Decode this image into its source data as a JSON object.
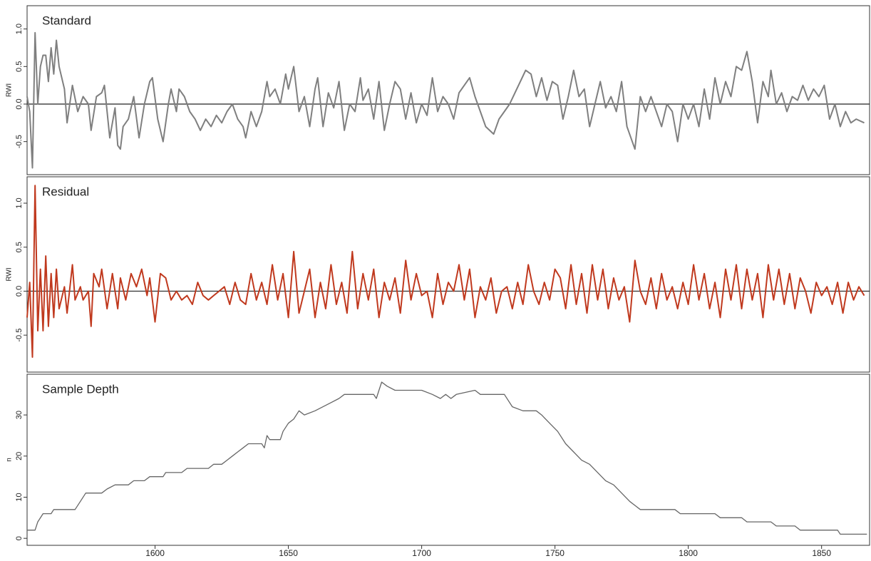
{
  "chart_data": [
    {
      "type": "line",
      "title": "Standard",
      "ylabel": "RWI",
      "color": "#7f7f7f",
      "hline": 0,
      "xlim": [
        1552,
        1868
      ],
      "ylim": [
        -0.94,
        1.31
      ],
      "yticks": [
        -0.5,
        {
          "value": 0,
          "label": "0.0"
        },
        0.5,
        {
          "value": 1,
          "label": "1.0"
        }
      ],
      "x": [
        1552,
        1553,
        1554,
        1555,
        1556,
        1557,
        1558,
        1559,
        1560,
        1561,
        1562,
        1563,
        1564,
        1566,
        1567,
        1569,
        1571,
        1573,
        1575,
        1576,
        1578,
        1580,
        1581,
        1583,
        1585,
        1586,
        1587,
        1588,
        1590,
        1592,
        1594,
        1596,
        1598,
        1599,
        1601,
        1603,
        1605,
        1606,
        1608,
        1609,
        1611,
        1613,
        1615,
        1617,
        1619,
        1621,
        1623,
        1625,
        1627,
        1629,
        1631,
        1633,
        1634,
        1636,
        1638,
        1640,
        1642,
        1643,
        1645,
        1647,
        1649,
        1650,
        1652,
        1654,
        1656,
        1658,
        1660,
        1661,
        1663,
        1665,
        1667,
        1669,
        1671,
        1673,
        1675,
        1677,
        1678,
        1680,
        1682,
        1684,
        1686,
        1688,
        1690,
        1692,
        1694,
        1696,
        1698,
        1700,
        1702,
        1704,
        1706,
        1708,
        1710,
        1712,
        1714,
        1716,
        1718,
        1720,
        1722,
        1724,
        1727,
        1729,
        1731,
        1733,
        1735,
        1737,
        1739,
        1741,
        1743,
        1745,
        1747,
        1749,
        1751,
        1753,
        1755,
        1757,
        1759,
        1761,
        1763,
        1765,
        1767,
        1769,
        1771,
        1773,
        1775,
        1777,
        1780,
        1782,
        1784,
        1786,
        1788,
        1790,
        1792,
        1794,
        1796,
        1798,
        1800,
        1802,
        1804,
        1806,
        1808,
        1810,
        1812,
        1814,
        1816,
        1818,
        1820,
        1822,
        1824,
        1826,
        1828,
        1830,
        1831,
        1833,
        1835,
        1837,
        1839,
        1841,
        1843,
        1845,
        1847,
        1849,
        1851,
        1853,
        1855,
        1857,
        1859,
        1861,
        1863,
        1866
      ],
      "values": [
        0.1,
        -0.1,
        -0.85,
        0.95,
        0.0,
        0.5,
        0.65,
        0.65,
        0.3,
        0.75,
        0.4,
        0.85,
        0.5,
        0.2,
        -0.25,
        0.25,
        -0.1,
        0.1,
        0.0,
        -0.35,
        0.1,
        0.15,
        0.25,
        -0.45,
        -0.05,
        -0.55,
        -0.6,
        -0.3,
        -0.2,
        0.1,
        -0.45,
        0.0,
        0.3,
        0.35,
        -0.2,
        -0.5,
        0.0,
        0.2,
        -0.1,
        0.2,
        0.1,
        -0.1,
        -0.2,
        -0.35,
        -0.2,
        -0.3,
        -0.15,
        -0.25,
        -0.1,
        0.0,
        -0.2,
        -0.3,
        -0.45,
        -0.1,
        -0.3,
        -0.1,
        0.3,
        0.1,
        0.2,
        0.0,
        0.4,
        0.2,
        0.5,
        -0.1,
        0.1,
        -0.3,
        0.2,
        0.35,
        -0.3,
        0.15,
        -0.05,
        0.3,
        -0.35,
        0.0,
        -0.1,
        0.35,
        0.05,
        0.2,
        -0.2,
        0.3,
        -0.35,
        0.0,
        0.3,
        0.2,
        -0.2,
        0.15,
        -0.25,
        0.0,
        -0.15,
        0.35,
        -0.1,
        0.1,
        0.0,
        -0.2,
        0.15,
        0.25,
        0.35,
        0.1,
        -0.1,
        -0.3,
        -0.4,
        -0.2,
        -0.1,
        0.0,
        0.15,
        0.3,
        0.45,
        0.4,
        0.1,
        0.35,
        0.05,
        0.3,
        0.25,
        -0.2,
        0.1,
        0.45,
        0.1,
        0.2,
        -0.3,
        0.0,
        0.3,
        -0.05,
        0.1,
        -0.1,
        0.3,
        -0.3,
        -0.6,
        0.1,
        -0.1,
        0.1,
        -0.1,
        -0.3,
        0.0,
        -0.1,
        -0.5,
        0.0,
        -0.2,
        0.0,
        -0.3,
        0.2,
        -0.2,
        0.35,
        0.0,
        0.3,
        0.1,
        0.5,
        0.45,
        0.7,
        0.3,
        -0.25,
        0.3,
        0.1,
        0.45,
        0.0,
        0.15,
        -0.1,
        0.1,
        0.05,
        0.25,
        0.05,
        0.2,
        0.1,
        0.25,
        -0.2,
        0.0,
        -0.3,
        -0.1,
        -0.25,
        -0.2,
        -0.25
      ]
    },
    {
      "type": "line",
      "title": "Residual",
      "ylabel": "RWI",
      "color": "#c0391e",
      "hline": 0,
      "xlim": [
        1552,
        1868
      ],
      "ylim": [
        -0.92,
        1.3
      ],
      "yticks": [
        -0.5,
        {
          "value": 0,
          "label": "0.0"
        },
        0.5,
        {
          "value": 1,
          "label": "1.0"
        }
      ],
      "x": [
        1552,
        1553,
        1554,
        1555,
        1556,
        1557,
        1558,
        1559,
        1560,
        1561,
        1562,
        1563,
        1564,
        1566,
        1567,
        1569,
        1570,
        1572,
        1573,
        1575,
        1576,
        1577,
        1579,
        1580,
        1582,
        1584,
        1585,
        1586,
        1587,
        1589,
        1591,
        1593,
        1595,
        1597,
        1598,
        1600,
        1602,
        1604,
        1606,
        1608,
        1610,
        1612,
        1614,
        1616,
        1618,
        1620,
        1622,
        1624,
        1626,
        1628,
        1630,
        1632,
        1634,
        1636,
        1638,
        1640,
        1642,
        1644,
        1646,
        1648,
        1650,
        1652,
        1654,
        1656,
        1658,
        1660,
        1662,
        1664,
        1666,
        1668,
        1670,
        1672,
        1674,
        1676,
        1678,
        1680,
        1682,
        1684,
        1686,
        1688,
        1690,
        1692,
        1694,
        1696,
        1698,
        1700,
        1702,
        1704,
        1706,
        1708,
        1710,
        1712,
        1714,
        1716,
        1718,
        1720,
        1722,
        1724,
        1726,
        1728,
        1730,
        1732,
        1734,
        1736,
        1738,
        1740,
        1742,
        1744,
        1746,
        1748,
        1750,
        1752,
        1754,
        1756,
        1758,
        1760,
        1762,
        1764,
        1766,
        1768,
        1770,
        1772,
        1774,
        1776,
        1778,
        1780,
        1782,
        1784,
        1786,
        1788,
        1790,
        1792,
        1794,
        1796,
        1798,
        1800,
        1802,
        1804,
        1806,
        1808,
        1810,
        1812,
        1814,
        1816,
        1818,
        1820,
        1822,
        1824,
        1826,
        1828,
        1830,
        1832,
        1834,
        1836,
        1838,
        1840,
        1842,
        1844,
        1846,
        1848,
        1850,
        1852,
        1854,
        1856,
        1858,
        1860,
        1862,
        1864,
        1866
      ],
      "values": [
        -0.3,
        0.1,
        -0.75,
        1.2,
        -0.45,
        0.25,
        -0.45,
        0.4,
        -0.4,
        0.2,
        -0.3,
        0.25,
        -0.2,
        0.05,
        -0.25,
        0.3,
        -0.1,
        0.05,
        -0.1,
        0.0,
        -0.4,
        0.2,
        0.05,
        0.25,
        -0.2,
        0.2,
        0.0,
        -0.2,
        0.15,
        -0.1,
        0.2,
        0.05,
        0.25,
        -0.05,
        0.15,
        -0.35,
        0.2,
        0.15,
        -0.1,
        0.0,
        -0.1,
        -0.05,
        -0.15,
        0.1,
        -0.05,
        -0.1,
        -0.05,
        0.0,
        0.05,
        -0.15,
        0.1,
        -0.1,
        -0.15,
        0.2,
        -0.1,
        0.1,
        -0.15,
        0.3,
        -0.1,
        0.2,
        -0.3,
        0.45,
        -0.25,
        0.0,
        0.25,
        -0.3,
        0.1,
        -0.2,
        0.3,
        -0.15,
        0.1,
        -0.25,
        0.45,
        -0.2,
        0.2,
        -0.1,
        0.25,
        -0.3,
        0.1,
        -0.1,
        0.15,
        -0.25,
        0.35,
        -0.1,
        0.2,
        -0.05,
        0.0,
        -0.3,
        0.2,
        -0.15,
        0.1,
        0.0,
        0.3,
        -0.1,
        0.25,
        -0.3,
        0.05,
        -0.1,
        0.15,
        -0.25,
        0.0,
        0.05,
        -0.2,
        0.1,
        -0.15,
        0.3,
        0.0,
        -0.15,
        0.1,
        -0.1,
        0.25,
        0.15,
        -0.2,
        0.3,
        -0.15,
        0.2,
        -0.25,
        0.3,
        -0.1,
        0.25,
        -0.2,
        0.15,
        -0.1,
        0.05,
        -0.35,
        0.35,
        0.0,
        -0.15,
        0.15,
        -0.2,
        0.2,
        -0.1,
        0.05,
        -0.2,
        0.1,
        -0.15,
        0.3,
        -0.1,
        0.2,
        -0.2,
        0.1,
        -0.3,
        0.25,
        -0.1,
        0.3,
        -0.2,
        0.25,
        -0.1,
        0.2,
        -0.3,
        0.3,
        -0.1,
        0.25,
        -0.15,
        0.2,
        -0.2,
        0.15,
        0.0,
        -0.25,
        0.1,
        -0.05,
        0.05,
        -0.15,
        0.1,
        -0.25,
        0.1,
        -0.1,
        0.05,
        -0.05
      ]
    },
    {
      "type": "line",
      "title": "Sample Depth",
      "ylabel": "n",
      "color": "#666666",
      "xlim": [
        1552,
        1868
      ],
      "ylim": [
        -1.7,
        39.9
      ],
      "yticks": [
        0,
        10,
        20,
        30
      ],
      "xticks": [
        1600,
        1650,
        1700,
        1750,
        1800,
        1850
      ],
      "x": [
        1552,
        1555,
        1556,
        1558,
        1561,
        1562,
        1570,
        1572,
        1574,
        1580,
        1582,
        1585,
        1590,
        1592,
        1596,
        1598,
        1603,
        1604,
        1610,
        1612,
        1620,
        1622,
        1625,
        1627,
        1629,
        1631,
        1633,
        1635,
        1640,
        1641,
        1642,
        1643,
        1647,
        1648,
        1650,
        1652,
        1654,
        1656,
        1660,
        1663,
        1666,
        1669,
        1671,
        1682,
        1683,
        1684,
        1685,
        1687,
        1690,
        1700,
        1704,
        1707,
        1709,
        1711,
        1713,
        1720,
        1722,
        1731,
        1734,
        1738,
        1743,
        1745,
        1748,
        1751,
        1754,
        1757,
        1760,
        1763,
        1766,
        1769,
        1772,
        1775,
        1778,
        1780,
        1782,
        1795,
        1797,
        1810,
        1812,
        1820,
        1822,
        1831,
        1833,
        1840,
        1842,
        1856,
        1857,
        1867
      ],
      "values": [
        2,
        2,
        4,
        6,
        6,
        7,
        7,
        9,
        11,
        11,
        12,
        13,
        13,
        14,
        14,
        15,
        15,
        16,
        16,
        17,
        17,
        18,
        18,
        19,
        20,
        21,
        22,
        23,
        23,
        22,
        25,
        24,
        24,
        26,
        28,
        29,
        31,
        30,
        31,
        32,
        33,
        34,
        35,
        35,
        34,
        36,
        38,
        37,
        36,
        36,
        35,
        34,
        35,
        34,
        35,
        36,
        35,
        35,
        32,
        31,
        31,
        30,
        28,
        26,
        23,
        21,
        19,
        18,
        16,
        14,
        13,
        11,
        9,
        8,
        7,
        7,
        6,
        6,
        5,
        5,
        4,
        4,
        3,
        3,
        2,
        2,
        1,
        1
      ]
    }
  ]
}
